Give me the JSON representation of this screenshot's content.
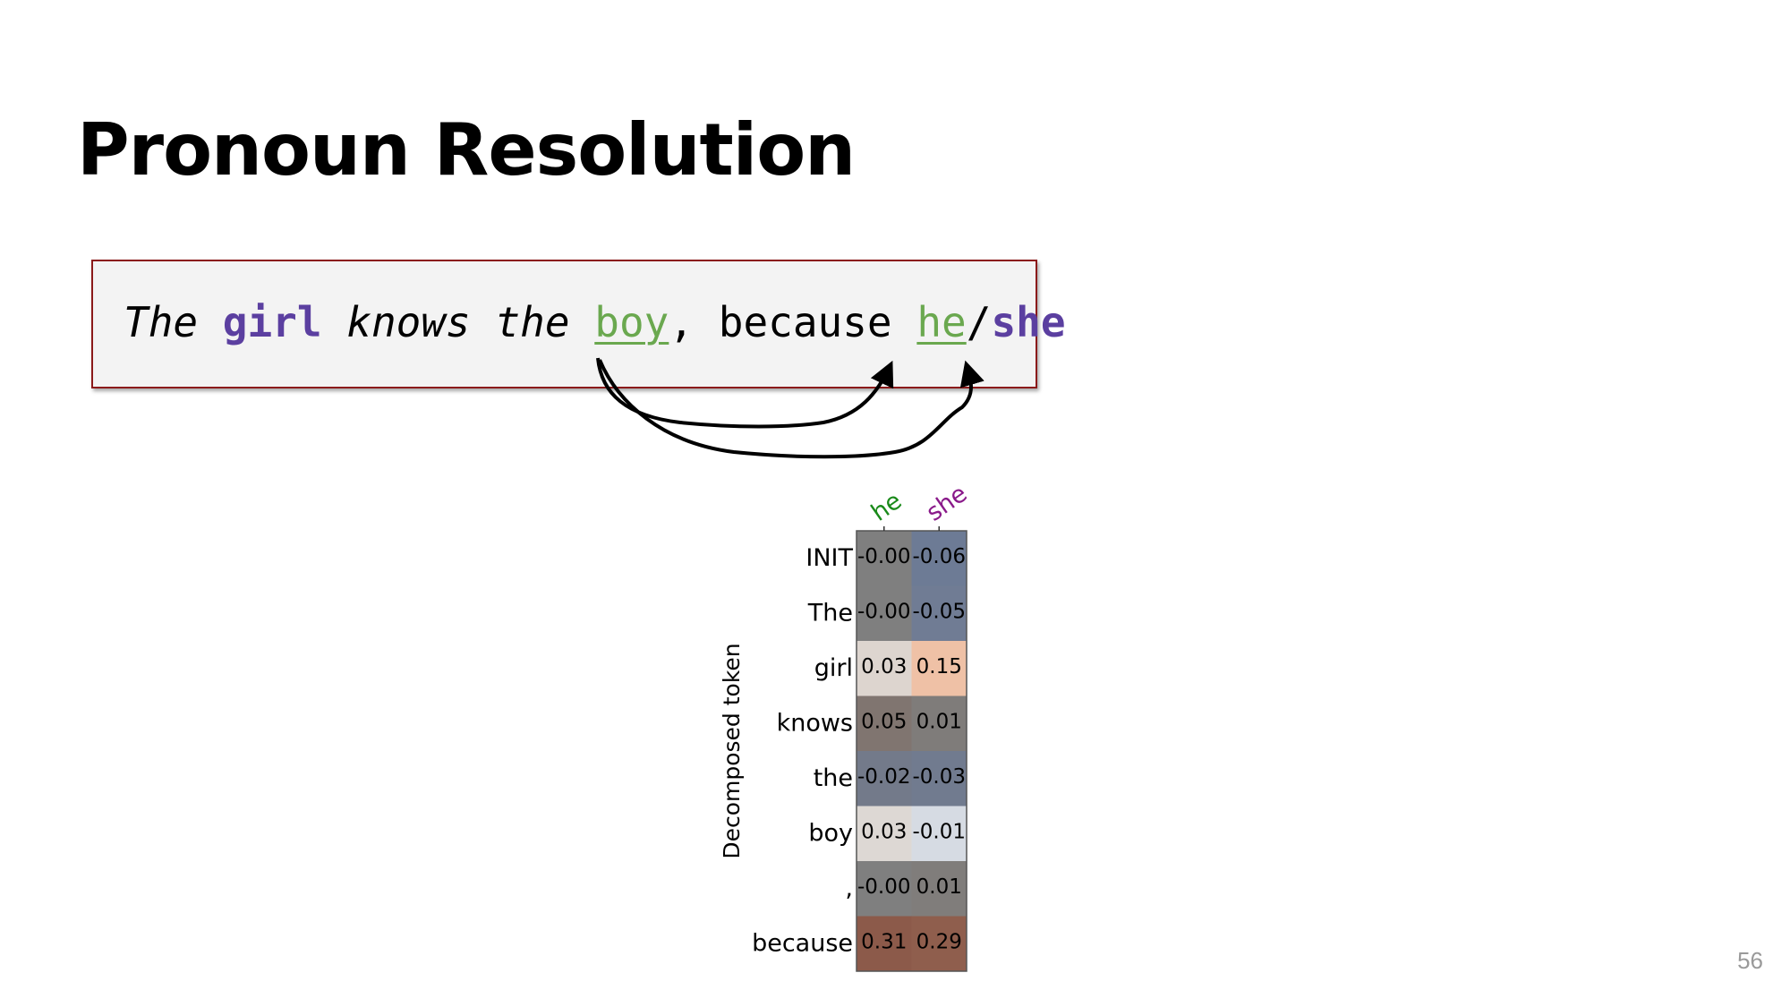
{
  "slide": {
    "title": "Pronoun Resolution",
    "page_number": "56"
  },
  "sentence": {
    "w_the1": "The",
    "w_girl": "girl",
    "w_knows": "knows",
    "w_the2": "the",
    "w_boy": "boy",
    "w_comma": ",",
    "w_because": "because",
    "w_he": "he",
    "w_slash": "/",
    "w_she": "she"
  },
  "colors": {
    "accent_purple": "#5b3fa0",
    "accent_green": "#6aa84f",
    "box_border": "#8b1a1a",
    "he_label": "#1a8a1a",
    "she_label": "#8a1a8a"
  },
  "chart_data": {
    "type": "heatmap",
    "ylabel": "Decomposed token",
    "columns": [
      "he",
      "she"
    ],
    "rows": [
      "INIT",
      "The",
      "girl",
      "knows",
      "the",
      "boy",
      ",",
      "because"
    ],
    "values": [
      [
        "-0.00",
        "-0.06"
      ],
      [
        "-0.00",
        "-0.05"
      ],
      [
        "0.03",
        "0.15"
      ],
      [
        "0.05",
        "0.01"
      ],
      [
        "-0.02",
        "-0.03"
      ],
      [
        "0.03",
        "-0.01"
      ],
      [
        "-0.00",
        "0.01"
      ],
      [
        "0.31",
        "0.29"
      ]
    ],
    "cell_colors": [
      [
        "#7f7f7f",
        "#6d7b95"
      ],
      [
        "#7f7f7f",
        "#707c94"
      ],
      [
        "#ddd5cf",
        "#efc1a6"
      ],
      [
        "#807570",
        "#7f7c7a"
      ],
      [
        "#737a8a",
        "#717b8f"
      ],
      [
        "#ddd8d4",
        "#d6dbe3"
      ],
      [
        "#7f7f7f",
        "#807d7b"
      ],
      [
        "#8c5a4a",
        "#8f5e4d"
      ]
    ]
  }
}
